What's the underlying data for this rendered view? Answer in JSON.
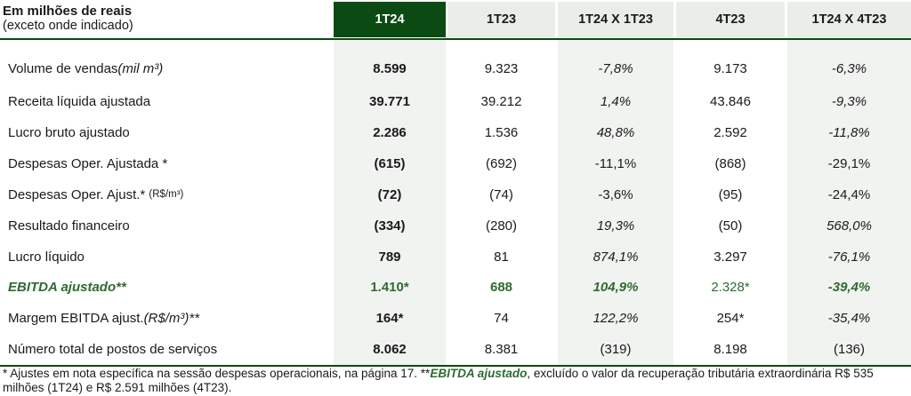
{
  "header": {
    "title": "Em milhões de reais",
    "subtitle": "(exceto onde indicado)",
    "columns": [
      "1T24",
      "1T23",
      "1T24 X 1T23",
      "4T23",
      "1T24 X 4T23"
    ]
  },
  "rows": [
    {
      "label": "Volume de vendas ",
      "label_em": "(mil m³)",
      "label_small": "",
      "values": [
        "8.599",
        "9.323",
        "-7,8%",
        "9.173",
        "-6,3%"
      ]
    },
    {
      "label": "Receita líquida ajustada",
      "label_em": "",
      "label_small": "",
      "values": [
        "39.771",
        "39.212",
        "1,4%",
        "43.846",
        "-9,3%"
      ]
    },
    {
      "label": "Lucro bruto ajustado",
      "label_em": "",
      "label_small": "",
      "values": [
        "2.286",
        "1.536",
        "48,8%",
        "2.592",
        "-11,8%"
      ]
    },
    {
      "label": "Despesas Oper. Ajustada *",
      "label_em": "",
      "label_small": "",
      "values": [
        "(615)",
        "(692)",
        "-11,1%",
        "(868)",
        "-29,1%"
      ]
    },
    {
      "label": "Despesas Oper. Ajust.* ",
      "label_em": "",
      "label_small": "(R$/m³)",
      "values": [
        "(72)",
        "(74)",
        "-3,6%",
        "(95)",
        "-24,4%"
      ]
    },
    {
      "label": "Resultado financeiro",
      "label_em": "",
      "label_small": "",
      "values": [
        "(334)",
        "(280)",
        "19,3%",
        "(50)",
        "568,0%"
      ]
    },
    {
      "label": "Lucro líquido",
      "label_em": "",
      "label_small": "",
      "values": [
        "789",
        "81",
        "874,1%",
        "3.297",
        "-76,1%"
      ]
    },
    {
      "label": "EBITDA ajustado**",
      "label_em": "",
      "label_small": "",
      "values": [
        "1.410*",
        "688",
        "104,9%",
        "2.328*",
        "-39,4%"
      ]
    },
    {
      "label": "Margem EBITDA ajust. ",
      "label_em": "(R$/m³)**",
      "label_small": "",
      "values": [
        "164*",
        "74",
        "122,2%",
        "254*",
        "-35,4%"
      ]
    },
    {
      "label": "Número total de postos de serviços",
      "label_em": "",
      "label_small": "",
      "values": [
        "8.062",
        "8.381",
        "(319)",
        "8.198",
        "(136)"
      ]
    }
  ],
  "footnote": {
    "part1": "* Ajustes em nota específica na sessão despesas operacionais, na página 17. **",
    "emph": "EBITDA ajustado",
    "part2": ", excluído o valor da recuperação tributária extraordinária R$ 535 milhões (1T24) e R$ 2.591 milhões (4T23)."
  }
}
